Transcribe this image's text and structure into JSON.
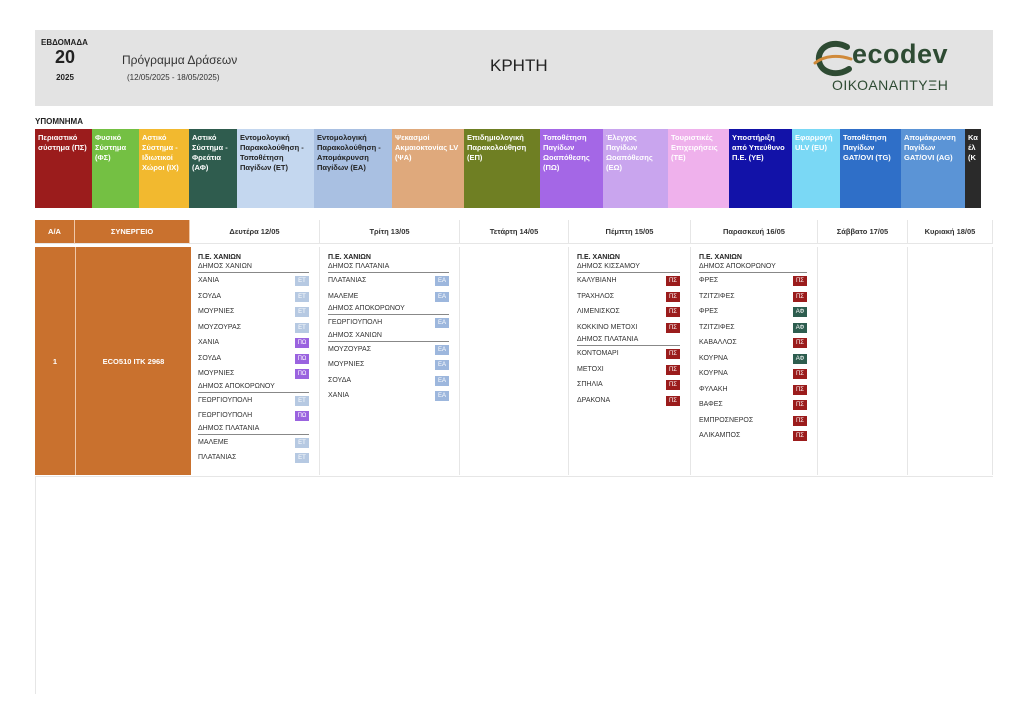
{
  "header": {
    "week_label": "ΕΒΔΟΜΑΔΑ",
    "week_number": "20",
    "year": "2025",
    "program_title": "Πρόγραμμα Δράσεων",
    "program_dates": "(12/05/2025 - 18/05/2025)",
    "region": "ΚΡΗΤΗ",
    "logo_text": "ecodev",
    "logo_sub": "ΟΙΚΟΑΝΑΠΤΥΞΗ"
  },
  "legend": {
    "title": "ΥΠΟΜΝΗΜΑ",
    "items": [
      {
        "label": "Περιαστικό σύστημα (ΠΣ)",
        "color": "#9b1c1c"
      },
      {
        "label": "Φυσικό Σύστημα (ΦΣ)",
        "color": "#74c043"
      },
      {
        "label": "Αστικό Σύστημα - Ιδιωτικοί Χώροι (ΙΧ)",
        "color": "#f2b92f"
      },
      {
        "label": "Αστικό Σύστημα - Φρεάτια (ΑΦ)",
        "color": "#2f5c4e"
      },
      {
        "label": "Εντομολογική Παρακολούθηση - Τοποθέτηση Παγίδων (ΕΤ)",
        "color": "#c4d7ef"
      },
      {
        "label": "Εντομολογική Παρακολούθηση - Απομάκρυνση Παγίδων (ΕΑ)",
        "color": "#a9c0e2"
      },
      {
        "label": "Ψεκασμοί Ακμαιοκτονίας LV (ΨΑ)",
        "color": "#dfa97c"
      },
      {
        "label": "Επιδημιολογική Παρακολούθηση (ΕΠ)",
        "color": "#6f7f23"
      },
      {
        "label": "Τοποθέτηση Παγίδων Ωοαπόθεσης (ΠΩ)",
        "color": "#a467e6"
      },
      {
        "label": "Έλεγχος Παγίδων Ωοαπόθεσης (ΕΩ)",
        "color": "#c9a5ee"
      },
      {
        "label": "Τουριστικές Επιχειρήσεις (ΤΕ)",
        "color": "#efb1ec"
      },
      {
        "label": "Υποστήριξη από Υπεύθυνο Π.Ε. (ΥΕ)",
        "color": "#1212a8"
      },
      {
        "label": "Εφαρμογή ULV (EU)",
        "color": "#7ad8f5"
      },
      {
        "label": "Τοποθέτηση Παγίδων GAT/OVI (TG)",
        "color": "#2f6fc8"
      },
      {
        "label": "Απομάκρυνση Παγίδων GAT/OVI (AG)",
        "color": "#5b94d6"
      },
      {
        "label": "Κα έλ (Κ",
        "color": "#2a2a2a"
      }
    ]
  },
  "table": {
    "col_aa": "Α/Α",
    "col_synergeio": "ΣΥΝΕΡΓΕΙΟ",
    "days": [
      "Δευτέρα 12/05",
      "Τρίτη 13/05",
      "Τετάρτη 14/05",
      "Πέμπτη 15/05",
      "Παρασκευή 16/05",
      "Σάββατο 17/05",
      "Κυριακή 18/05"
    ],
    "row": {
      "aa": "1",
      "synergeio": "ECO510 ΙΤΚ 2968"
    },
    "monday": {
      "pe": "Π.Ε. ΧΑΝΙΩΝ",
      "groups": [
        {
          "muni": "ΔΗΜΟΣ ΧΑΝΙΩΝ",
          "rows": [
            {
              "name": "ΧΑΝΙΑ",
              "code": "ΕΤ"
            },
            {
              "name": "ΣΟΥΔΑ",
              "code": "ΕΤ"
            },
            {
              "name": "ΜΟΥΡΝΙΕΣ",
              "code": "ΕΤ"
            },
            {
              "name": "ΜΟΥΖΟΥΡΑΣ",
              "code": "ΕΤ"
            },
            {
              "name": "ΧΑΝΙΑ",
              "code": "ΠΩ"
            },
            {
              "name": "ΣΟΥΔΑ",
              "code": "ΠΩ"
            },
            {
              "name": "ΜΟΥΡΝΙΕΣ",
              "code": "ΠΩ"
            }
          ]
        },
        {
          "muni": "ΔΗΜΟΣ ΑΠΟΚΟΡΩΝΟΥ",
          "rows": [
            {
              "name": "ΓΕΩΡΓΙΟΥΠΟΛΗ",
              "code": "ΕΤ"
            },
            {
              "name": "ΓΕΩΡΓΙΟΥΠΟΛΗ",
              "code": "ΠΩ"
            }
          ]
        },
        {
          "muni": "ΔΗΜΟΣ ΠΛΑΤΑΝΙΑ",
          "rows": [
            {
              "name": "ΜΑΛΕΜΕ",
              "code": "ΕΤ"
            },
            {
              "name": "ΠΛΑΤΑΝΙΑΣ",
              "code": "ΕΤ"
            }
          ]
        }
      ]
    },
    "tuesday": {
      "pe": "Π.Ε. ΧΑΝΙΩΝ",
      "groups": [
        {
          "muni": "ΔΗΜΟΣ ΠΛΑΤΑΝΙΑ",
          "rows": [
            {
              "name": "ΠΛΑΤΑΝΙΑΣ",
              "code": "ΕΑ"
            },
            {
              "name": "ΜΑΛΕΜΕ",
              "code": "ΕΑ"
            }
          ]
        },
        {
          "muni": "ΔΗΜΟΣ ΑΠΟΚΟΡΩΝΟΥ",
          "rows": [
            {
              "name": "ΓΕΩΡΓΙΟΥΠΟΛΗ",
              "code": "ΕΑ"
            }
          ]
        },
        {
          "muni": "ΔΗΜΟΣ ΧΑΝΙΩΝ",
          "rows": [
            {
              "name": "ΜΟΥΖΟΥΡΑΣ",
              "code": "ΕΑ"
            },
            {
              "name": "ΜΟΥΡΝΙΕΣ",
              "code": "ΕΑ"
            },
            {
              "name": "ΣΟΥΔΑ",
              "code": "ΕΑ"
            },
            {
              "name": "ΧΑΝΙΑ",
              "code": "ΕΑ"
            }
          ]
        }
      ]
    },
    "thursday": {
      "pe": "Π.Ε. ΧΑΝΙΩΝ",
      "groups": [
        {
          "muni": "ΔΗΜΟΣ ΚΙΣΣΑΜΟΥ",
          "rows": [
            {
              "name": "ΚΑΛΥΒΙΑΝΗ",
              "code": "ΠΣ"
            },
            {
              "name": "ΤΡΑΧΗΛΟΣ",
              "code": "ΠΣ"
            },
            {
              "name": "ΛΙΜΕΝΙΣΚΟΣ",
              "code": "ΠΣ"
            },
            {
              "name": "ΚΟΚΚΙΝΟ ΜΕΤΟΧΙ",
              "code": "ΠΣ"
            }
          ]
        },
        {
          "muni": "ΔΗΜΟΣ ΠΛΑΤΑΝΙΑ",
          "rows": [
            {
              "name": "ΚΟΝΤΟΜΑΡΙ",
              "code": "ΠΣ"
            },
            {
              "name": "ΜΕΤΟΧΙ",
              "code": "ΠΣ"
            },
            {
              "name": "ΣΠΗΛΙΑ",
              "code": "ΠΣ"
            },
            {
              "name": "ΔΡΑΚΟΝΑ",
              "code": "ΠΣ"
            }
          ]
        }
      ]
    },
    "friday": {
      "pe": "Π.Ε. ΧΑΝΙΩΝ",
      "groups": [
        {
          "muni": "ΔΗΜΟΣ ΑΠΟΚΟΡΩΝΟΥ",
          "rows": [
            {
              "name": "ΦΡΕΣ",
              "code": "ΠΣ"
            },
            {
              "name": "ΤΖΙΤΖΙΦΕΣ",
              "code": "ΠΣ"
            },
            {
              "name": "ΦΡΕΣ",
              "code": "ΑΦ"
            },
            {
              "name": "ΤΖΙΤΖΙΦΕΣ",
              "code": "ΑΦ"
            },
            {
              "name": "ΚΑΒΑΛΛΟΣ",
              "code": "ΠΣ"
            },
            {
              "name": "ΚΟΥΡΝΑ",
              "code": "ΑΦ"
            },
            {
              "name": "ΚΟΥΡΝΑ",
              "code": "ΠΣ"
            },
            {
              "name": "ΦΥΛΑΚΗ",
              "code": "ΠΣ"
            },
            {
              "name": "ΒΑΦΕΣ",
              "code": "ΠΣ"
            },
            {
              "name": "ΕΜΠΡΟΣΝΕΡΟΣ",
              "code": "ΠΣ"
            },
            {
              "name": "ΑΛΙΚΑΜΠΟΣ",
              "code": "ΠΣ"
            }
          ]
        }
      ]
    },
    "code_classes": {
      "ΕΤ": "t-ET",
      "ΠΩ": "t-PO",
      "ΕΑ": "t-EA",
      "ΠΣ": "t-PS",
      "ΑΦ": "t-AF"
    }
  }
}
